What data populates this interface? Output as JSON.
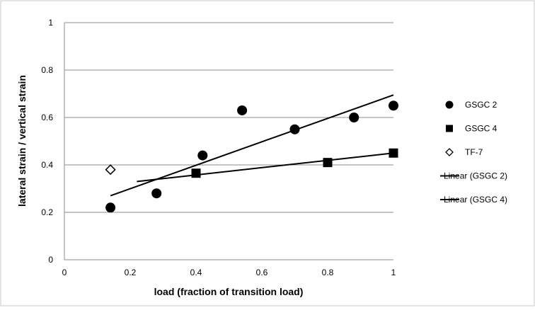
{
  "chart_data": {
    "type": "scatter",
    "title": "",
    "xlabel": "load (fraction of transition load)",
    "ylabel": "lateral strain / vertical strain",
    "xlim": [
      0,
      1
    ],
    "ylim": [
      0,
      1
    ],
    "x_ticks": [
      "0",
      "0.2",
      "0.4",
      "0.6",
      "0.8",
      "1"
    ],
    "y_ticks": [
      "0",
      "0.2",
      "0.4",
      "0.6",
      "0.8",
      "1"
    ],
    "grid": "horizontal major gridlines",
    "legend_position": "right",
    "series": [
      {
        "name": "GSGC 2",
        "marker": "circle",
        "color": "#000000",
        "points": [
          {
            "x": 0.14,
            "y": 0.22
          },
          {
            "x": 0.28,
            "y": 0.28
          },
          {
            "x": 0.42,
            "y": 0.44
          },
          {
            "x": 0.54,
            "y": 0.63
          },
          {
            "x": 0.7,
            "y": 0.55
          },
          {
            "x": 0.88,
            "y": 0.6
          },
          {
            "x": 1.0,
            "y": 0.65
          }
        ]
      },
      {
        "name": "GSGC 4",
        "marker": "square",
        "color": "#000000",
        "points": [
          {
            "x": 0.4,
            "y": 0.365
          },
          {
            "x": 0.8,
            "y": 0.41
          },
          {
            "x": 1.0,
            "y": 0.45
          }
        ]
      },
      {
        "name": "TF-7",
        "marker": "diamond-open",
        "color": "#000000",
        "points": [
          {
            "x": 0.14,
            "y": 0.38
          }
        ]
      }
    ],
    "trendlines": [
      {
        "name": "Linear (GSGC 2)",
        "type": "linear",
        "x_range": [
          0.14,
          1.0
        ],
        "y_range": [
          0.27,
          0.695
        ],
        "color": "#000000"
      },
      {
        "name": "Linear (GSGC 4)",
        "type": "linear",
        "x_range": [
          0.22,
          1.0
        ],
        "y_range": [
          0.33,
          0.45
        ],
        "color": "#000000"
      }
    ],
    "legend": [
      "GSGC 2",
      "GSGC 4",
      "TF-7",
      "Linear (GSGC 2)",
      "Linear (GSGC 4)"
    ]
  }
}
